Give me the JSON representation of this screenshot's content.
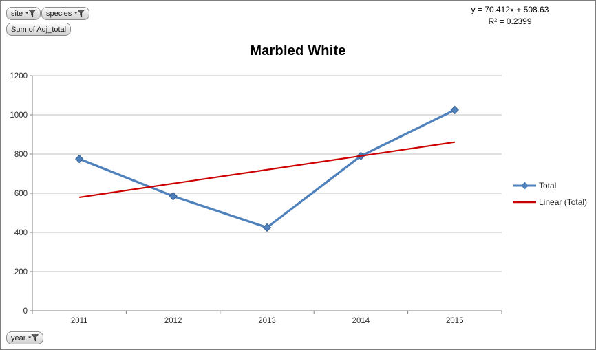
{
  "pivot_buttons": {
    "site": {
      "label": "site",
      "has_filter": true
    },
    "species": {
      "label": "species",
      "has_filter": true
    },
    "value_field": {
      "label": "Sum of Adj_total",
      "has_filter": false
    },
    "year": {
      "label": "year",
      "has_filter": true
    }
  },
  "trendline_label": {
    "equation": "y = 70.412x + 508.63",
    "r_squared": "R² = 0.2399"
  },
  "legend": {
    "items": [
      {
        "label": "Total"
      },
      {
        "label": "Linear (Total)"
      }
    ]
  },
  "chart_data": {
    "type": "line",
    "title": "Marbled White",
    "categories": [
      "2011",
      "2012",
      "2013",
      "2014",
      "2015"
    ],
    "series": [
      {
        "name": "Total",
        "values": [
          775,
          585,
          425,
          790,
          1025
        ],
        "color": "#4F81BD",
        "marker": "diamond"
      },
      {
        "name": "Linear (Total)",
        "type": "trendline",
        "slope": 70.412,
        "intercept": 508.63,
        "color": "#CC0000"
      }
    ],
    "xlabel": "",
    "ylabel": "",
    "ylim": [
      0,
      1200
    ],
    "ytick_step": 200,
    "grid": true,
    "legend_position": "right",
    "colors": {
      "grid": "#bfbfbf",
      "axis": "#808080",
      "tick_label": "#2f2f2f",
      "marker_border": "#38608f"
    }
  }
}
